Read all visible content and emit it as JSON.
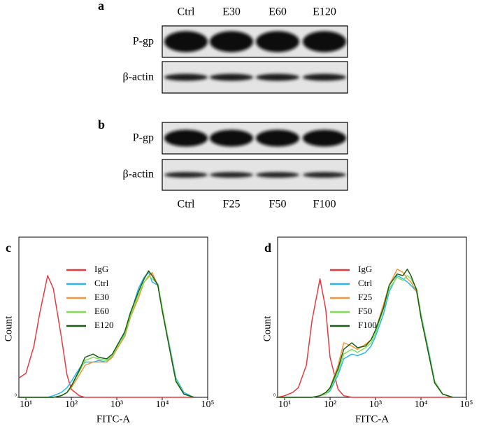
{
  "blot_a": {
    "label": "a",
    "lanes": [
      "Ctrl",
      "E30",
      "E60",
      "E120"
    ],
    "rows": [
      "P-gp",
      "β-actin"
    ]
  },
  "blot_b": {
    "label": "b",
    "lanes": [
      "Ctrl",
      "F25",
      "F50",
      "F100"
    ],
    "rows": [
      "P-gp",
      "β-actin"
    ]
  },
  "chart_data": [
    {
      "type": "line",
      "panel_label": "c",
      "y_label": "Count",
      "x_label": "FITC-A",
      "log_x": true,
      "xlim": [
        7,
        100000
      ],
      "ylim": [
        0,
        100
      ],
      "xticks": [
        {
          "value": 10,
          "label": "10¹"
        },
        {
          "value": 100,
          "label": "10²"
        },
        {
          "value": 1000,
          "label": "10³"
        },
        {
          "value": 10000,
          "label": "10⁴"
        },
        {
          "value": 100000,
          "label": "10⁵"
        }
      ],
      "yticks": [
        0
      ],
      "x": [
        7,
        10,
        15,
        20,
        30,
        40,
        60,
        80,
        100,
        150,
        200,
        300,
        400,
        600,
        800,
        1000,
        1500,
        2000,
        3000,
        4000,
        5000,
        6000,
        8000,
        10000,
        15000,
        20000,
        30000,
        50000
      ],
      "series": [
        {
          "name": "IgG",
          "color": "#e8393f",
          "values": [
            12,
            15,
            32,
            52,
            76,
            68,
            38,
            14,
            5,
            1,
            0,
            0,
            0,
            0,
            0,
            0,
            0,
            0,
            0,
            0,
            0,
            0,
            0,
            0,
            0,
            0,
            0,
            0
          ]
        },
        {
          "name": "Ctrl",
          "color": "#29b6f0",
          "values": [
            0,
            0,
            0,
            0,
            0,
            1,
            3,
            6,
            10,
            18,
            22,
            22,
            23,
            22,
            26,
            30,
            40,
            52,
            68,
            75,
            78,
            72,
            70,
            55,
            30,
            12,
            3,
            0
          ]
        },
        {
          "name": "E30",
          "color": "#f7943b",
          "values": [
            0,
            0,
            0,
            0,
            0,
            0,
            1,
            3,
            6,
            14,
            20,
            22,
            22,
            22,
            25,
            30,
            38,
            50,
            62,
            72,
            75,
            78,
            70,
            55,
            28,
            10,
            2,
            0
          ]
        },
        {
          "name": "E60",
          "color": "#7ee04f",
          "values": [
            0,
            0,
            0,
            0,
            0,
            0,
            1,
            3,
            7,
            16,
            23,
            25,
            24,
            23,
            26,
            31,
            39,
            51,
            64,
            72,
            76,
            74,
            71,
            56,
            29,
            11,
            2,
            0
          ]
        },
        {
          "name": "E120",
          "color": "#1a5e1a",
          "values": [
            0,
            0,
            0,
            0,
            0,
            0,
            1,
            3,
            7,
            17,
            25,
            27,
            25,
            24,
            27,
            32,
            41,
            53,
            66,
            74,
            79,
            76,
            70,
            54,
            28,
            10,
            2,
            0
          ]
        }
      ]
    },
    {
      "type": "line",
      "panel_label": "d",
      "y_label": "Count",
      "x_label": "FITC-A",
      "log_x": true,
      "xlim": [
        7,
        100000
      ],
      "ylim": [
        0,
        100
      ],
      "xticks": [
        {
          "value": 10,
          "label": "10¹"
        },
        {
          "value": 100,
          "label": "10²"
        },
        {
          "value": 1000,
          "label": "10³"
        },
        {
          "value": 10000,
          "label": "10⁴"
        },
        {
          "value": 100000,
          "label": "10⁵"
        }
      ],
      "yticks": [
        0
      ],
      "x": [
        7,
        10,
        15,
        20,
        30,
        40,
        60,
        80,
        100,
        150,
        200,
        300,
        400,
        600,
        800,
        1000,
        1500,
        2000,
        3000,
        4000,
        5000,
        6000,
        8000,
        10000,
        15000,
        20000,
        30000,
        50000
      ],
      "series": [
        {
          "name": "IgG",
          "color": "#e8393f",
          "values": [
            0,
            1,
            3,
            6,
            20,
            48,
            74,
            55,
            25,
            5,
            1,
            0,
            0,
            0,
            0,
            0,
            0,
            0,
            0,
            0,
            0,
            0,
            0,
            0,
            0,
            0,
            0,
            0
          ]
        },
        {
          "name": "Ctrl",
          "color": "#29b6f0",
          "values": [
            0,
            0,
            0,
            0,
            0,
            0,
            1,
            2,
            4,
            14,
            24,
            27,
            26,
            28,
            32,
            38,
            52,
            66,
            76,
            74,
            72,
            70,
            66,
            52,
            28,
            10,
            2,
            0
          ]
        },
        {
          "name": "F25",
          "color": "#f7943b",
          "values": [
            0,
            0,
            0,
            0,
            0,
            0,
            1,
            3,
            6,
            20,
            34,
            32,
            30,
            33,
            36,
            42,
            58,
            70,
            80,
            78,
            74,
            72,
            66,
            50,
            26,
            9,
            2,
            0
          ]
        },
        {
          "name": "F50",
          "color": "#7ee04f",
          "values": [
            0,
            0,
            0,
            0,
            0,
            0,
            1,
            2,
            5,
            16,
            27,
            30,
            28,
            31,
            34,
            40,
            55,
            68,
            75,
            73,
            76,
            74,
            68,
            52,
            27,
            10,
            2,
            0
          ]
        },
        {
          "name": "F100",
          "color": "#1a5e1a",
          "values": [
            0,
            0,
            0,
            0,
            0,
            0,
            1,
            3,
            6,
            18,
            30,
            34,
            31,
            32,
            36,
            42,
            56,
            70,
            77,
            76,
            80,
            76,
            67,
            50,
            26,
            9,
            2,
            0
          ]
        }
      ]
    }
  ]
}
